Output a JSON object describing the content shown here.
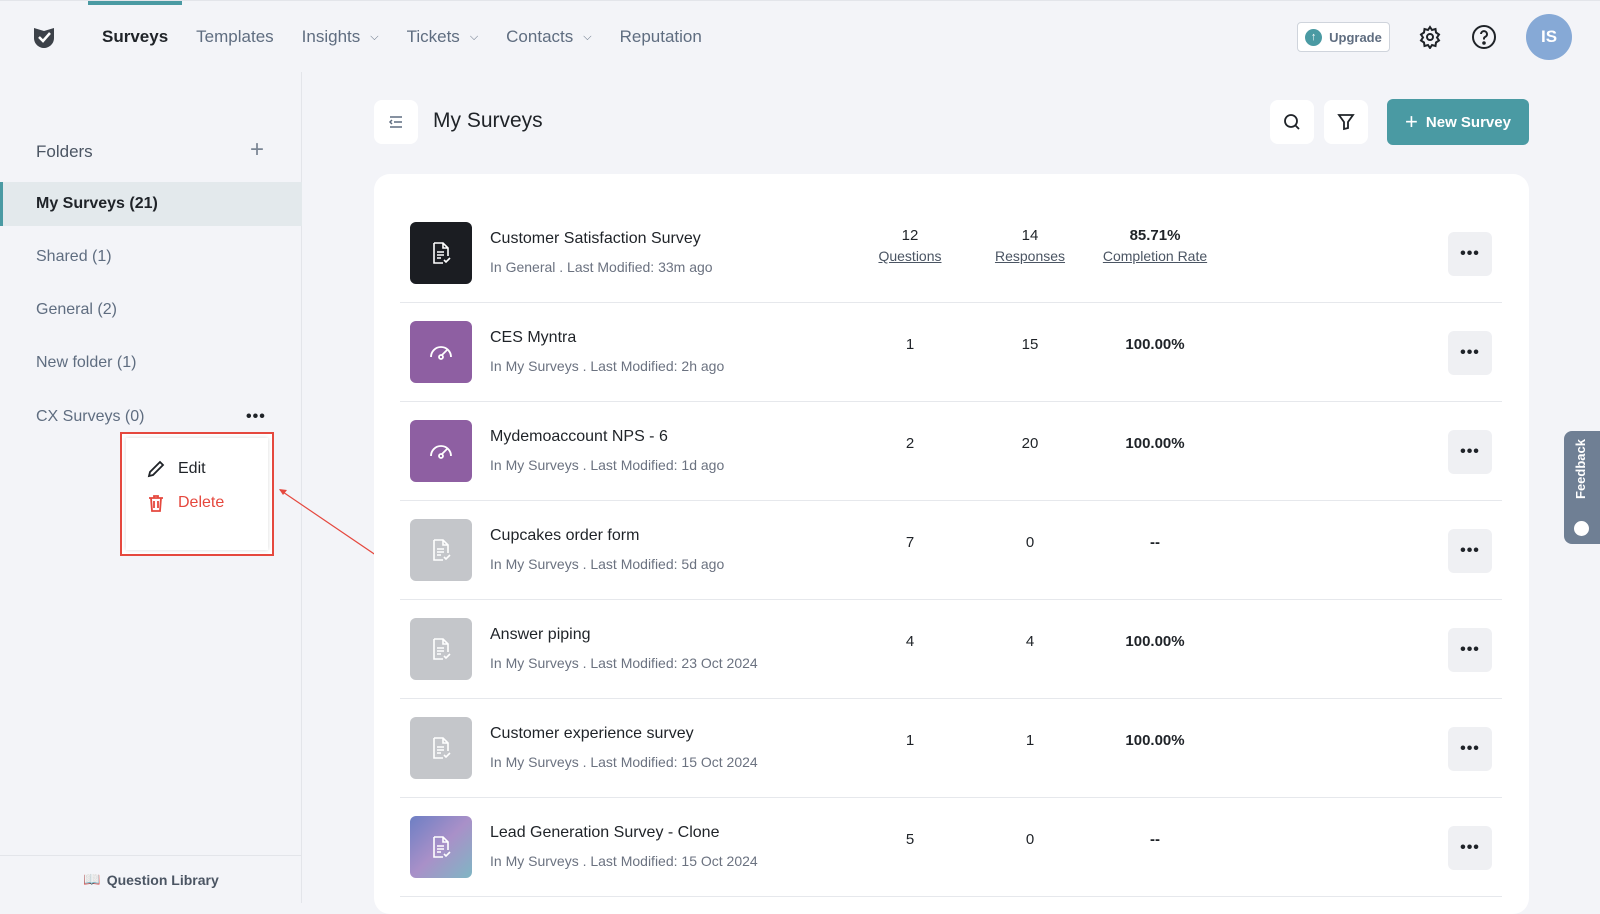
{
  "nav": {
    "items": [
      {
        "label": "Surveys",
        "active": true
      },
      {
        "label": "Templates"
      },
      {
        "label": "Insights",
        "dropdown": true
      },
      {
        "label": "Tickets",
        "dropdown": true
      },
      {
        "label": "Contacts",
        "dropdown": true
      },
      {
        "label": "Reputation"
      }
    ],
    "upgrade": "Upgrade",
    "avatar": "IS"
  },
  "sidebar": {
    "header": "Folders",
    "folders": [
      {
        "label": "My Surveys (21)",
        "selected": true
      },
      {
        "label": "Shared (1)"
      },
      {
        "label": "General (2)"
      },
      {
        "label": "New folder (1)"
      },
      {
        "label": "CX Surveys (0)"
      }
    ],
    "menu": {
      "edit": "Edit",
      "delete": "Delete"
    },
    "question_library": "Question Library"
  },
  "main": {
    "title": "My Surveys",
    "new_survey": "New Survey",
    "labels": {
      "questions": "Questions",
      "responses": "Responses",
      "completion": "Completion Rate"
    },
    "surveys": [
      {
        "name": "Customer Satisfaction Survey",
        "meta": "In General . Last Modified: 33m ago",
        "questions": "12",
        "responses": "14",
        "completion": "85.71%",
        "thumb": "#1b1d22",
        "icon": "document-check"
      },
      {
        "name": "CES Myntra",
        "meta": "In My Surveys . Last Modified: 2h ago",
        "questions": "1",
        "responses": "15",
        "completion": "100.00%",
        "thumb": "#8e5fa2",
        "icon": "gauge"
      },
      {
        "name": "Mydemoaccount NPS - 6",
        "meta": "In My Surveys . Last Modified: 1d ago",
        "questions": "2",
        "responses": "20",
        "completion": "100.00%",
        "thumb": "#8e5fa2",
        "icon": "gauge"
      },
      {
        "name": "Cupcakes order form",
        "meta": "In My Surveys . Last Modified: 5d ago",
        "questions": "7",
        "responses": "0",
        "completion": "--",
        "thumb": "#c4c6ca",
        "icon": "document-check"
      },
      {
        "name": "Answer piping",
        "meta": "In My Surveys . Last Modified: 23 Oct 2024",
        "questions": "4",
        "responses": "4",
        "completion": "100.00%",
        "thumb": "#c4c6ca",
        "icon": "document-check"
      },
      {
        "name": "Customer experience survey",
        "meta": "In My Surveys . Last Modified: 15 Oct 2024",
        "questions": "1",
        "responses": "1",
        "completion": "100.00%",
        "thumb": "#c4c6ca",
        "icon": "document-check"
      },
      {
        "name": "Lead Generation Survey - Clone",
        "meta": "In My Surveys . Last Modified: 15 Oct 2024",
        "questions": "5",
        "responses": "0",
        "completion": "--",
        "thumb": "linear-gradient(135deg,#6d7fc4,#a990c8,#7fb6c4)",
        "icon": "document-check"
      }
    ]
  },
  "feedback": "Feedback",
  "colors": {
    "accent": "#4a9aa3",
    "danger": "#e5483e"
  }
}
